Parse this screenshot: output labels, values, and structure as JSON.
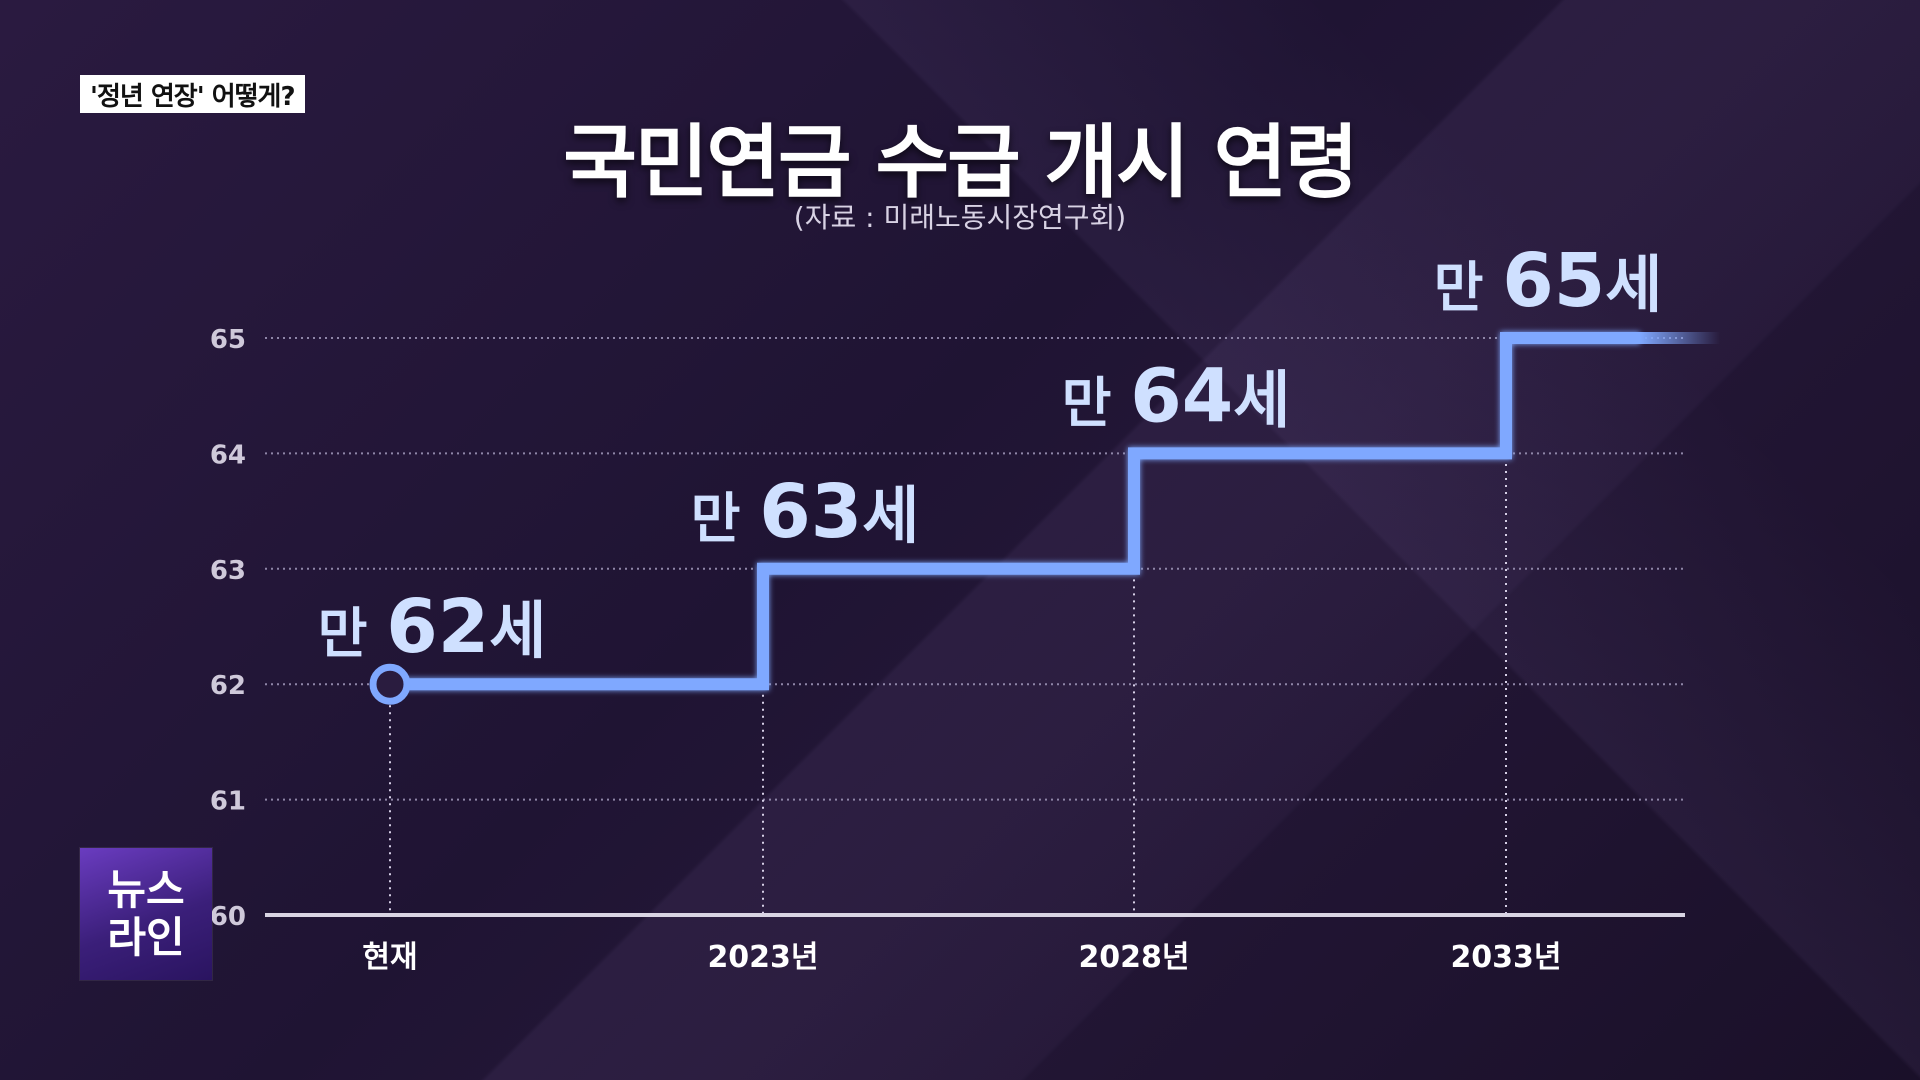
{
  "segment_tag": "'정년 연장' 어떻게?",
  "logo": {
    "line1": "뉴스",
    "line2": "라인"
  },
  "chart_data": {
    "type": "line",
    "title": "국민연금 수급 개시 연령",
    "subtitle": "(자료 : 미래노동시장연구회)",
    "categories": [
      "현재",
      "2023년",
      "2028년",
      "2033년"
    ],
    "values": [
      62,
      63,
      64,
      65
    ],
    "point_labels": [
      {
        "prefix": "만",
        "number": "62",
        "suffix": "세"
      },
      {
        "prefix": "만",
        "number": "63",
        "suffix": "세"
      },
      {
        "prefix": "만",
        "number": "64",
        "suffix": "세"
      },
      {
        "prefix": "만",
        "number": "65",
        "suffix": "세"
      }
    ],
    "yticks": [
      "60",
      "61",
      "62",
      "63",
      "64",
      "65"
    ],
    "ylim": [
      60,
      65
    ],
    "step": true,
    "grid": true,
    "colors": {
      "line": "#7fa8ff",
      "label": "#cfe0ff",
      "grid": "#8f86a8",
      "axis": "#d9d4e3"
    }
  }
}
